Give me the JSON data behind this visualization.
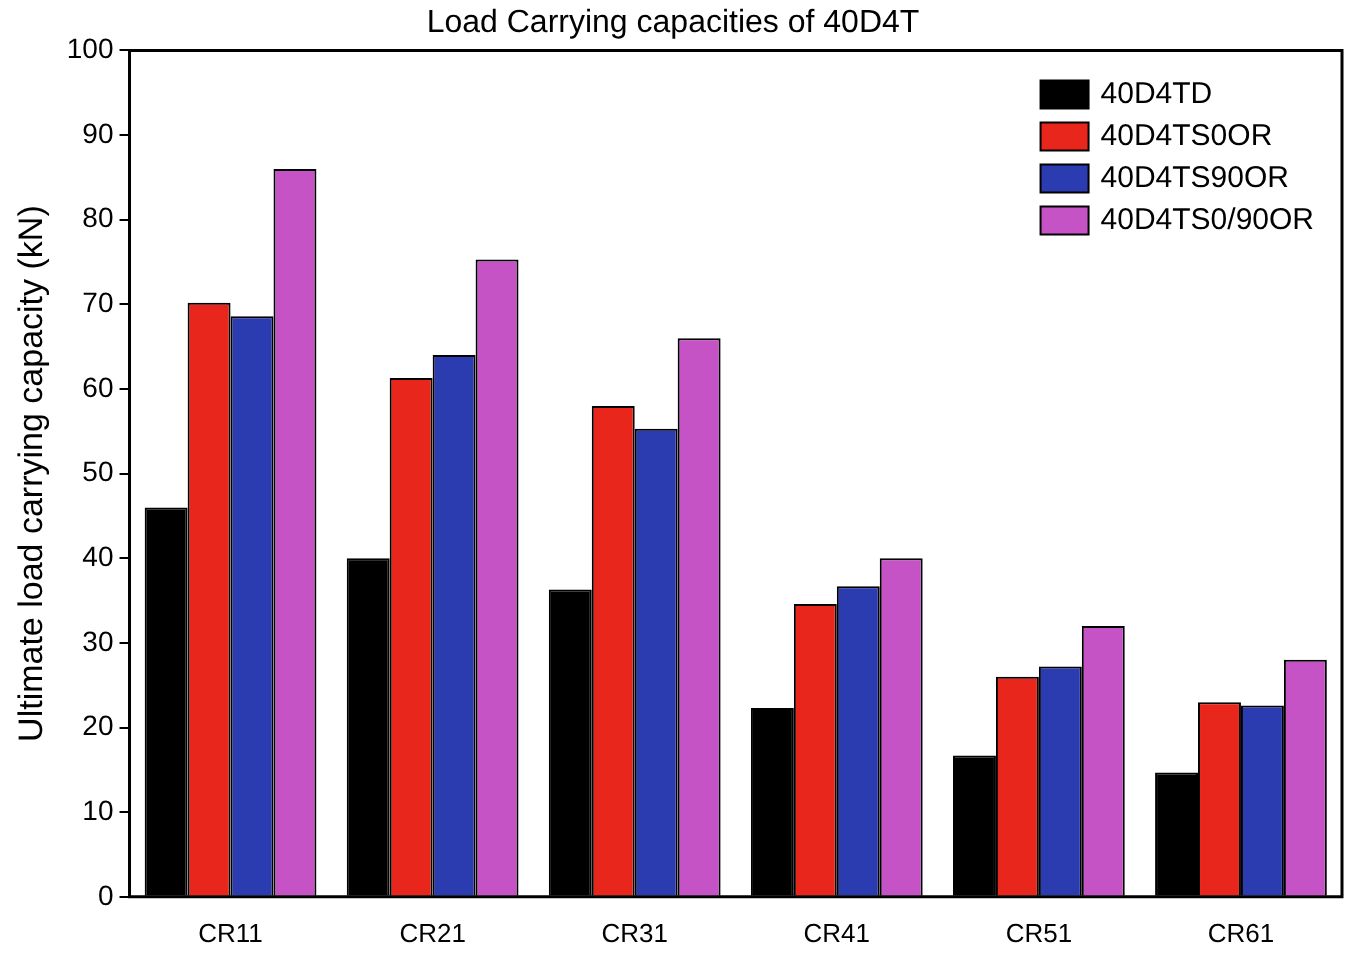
{
  "chart_data": {
    "type": "bar",
    "title": "Load Carrying capacities of 40D4T",
    "ylabel": "Ultimate load carrying capacity (kN)",
    "categories": [
      "CR11",
      "CR21",
      "CR31",
      "CR41",
      "CR51",
      "CR61"
    ],
    "series": [
      {
        "name": "40D4TD",
        "color": "#000000",
        "values": [
          46,
          40,
          36.3,
          22.3,
          16.7,
          14.7
        ]
      },
      {
        "name": "40D4TS0OR",
        "color": "#e8261c",
        "values": [
          70.2,
          61.3,
          58,
          34.6,
          26,
          23
        ]
      },
      {
        "name": "40D4TS90OR",
        "color": "#2b3bb0",
        "values": [
          68.6,
          64,
          55.3,
          36.7,
          27.2,
          22.6
        ]
      },
      {
        "name": "40D4TS0/90OR",
        "color": "#c653c6",
        "values": [
          86,
          75.3,
          66,
          40,
          32,
          28
        ]
      }
    ],
    "ylim": [
      0,
      100
    ],
    "yticks": [
      0,
      10,
      20,
      30,
      40,
      50,
      60,
      70,
      80,
      90,
      100
    ],
    "grid": false,
    "legend": "top right"
  }
}
